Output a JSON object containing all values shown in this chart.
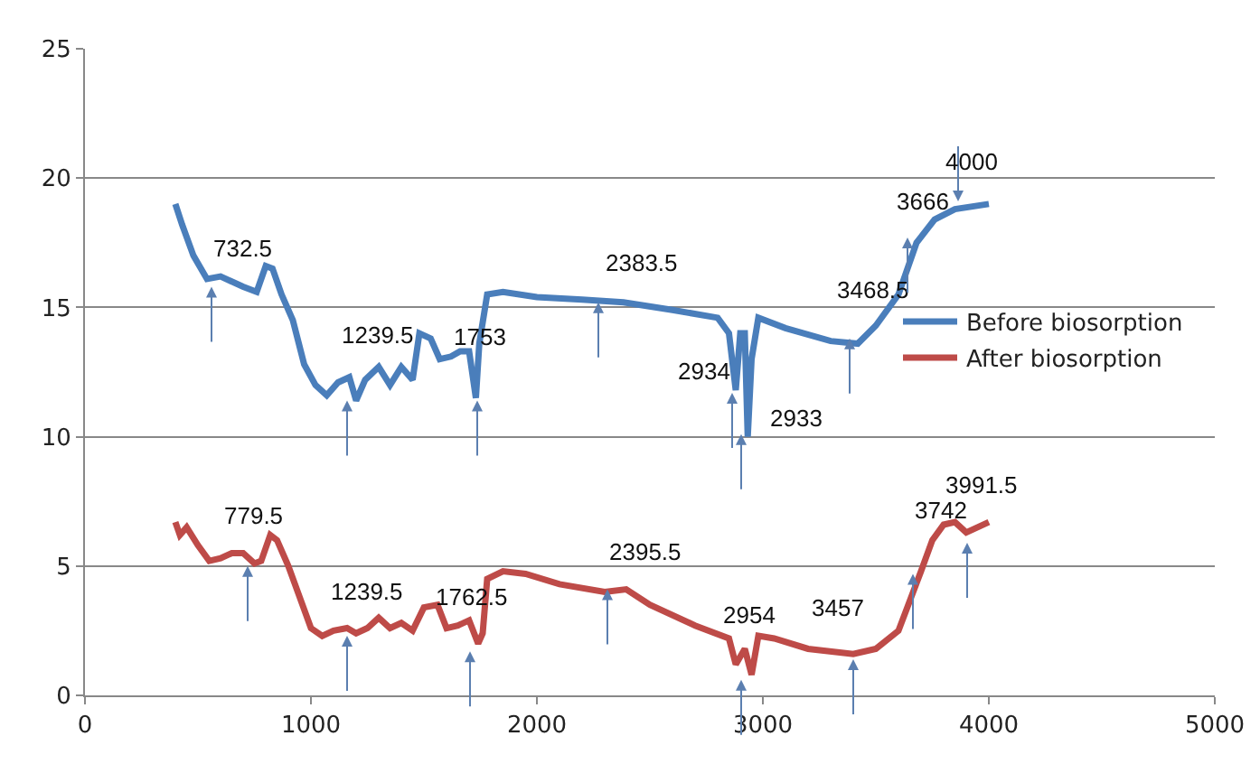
{
  "chart_data": {
    "type": "line",
    "xlim": [
      0,
      5000
    ],
    "xticks": [
      0,
      1000,
      2000,
      3000,
      4000,
      5000
    ],
    "ylim": [
      0,
      25
    ],
    "yticks": [
      0,
      5,
      10,
      15,
      20,
      25
    ],
    "grid": "y",
    "legend": "right",
    "marker": "none",
    "line_style": "solid",
    "series": [
      {
        "name": "Before biosorption",
        "color": "#4a7ebb",
        "x": [
          400,
          430,
          480,
          540,
          600,
          700,
          760,
          800,
          830,
          870,
          920,
          970,
          1020,
          1070,
          1120,
          1170,
          1200,
          1240,
          1300,
          1350,
          1400,
          1450,
          1480,
          1530,
          1570,
          1620,
          1660,
          1700,
          1730,
          1745,
          1780,
          1850,
          2000,
          2200,
          2383,
          2600,
          2800,
          2850,
          2880,
          2900,
          2920,
          2933,
          2950,
          2980,
          3100,
          3300,
          3420,
          3500,
          3600,
          3680,
          3760,
          3850,
          4000
        ],
        "values": [
          19.0,
          18.2,
          17.0,
          16.1,
          16.2,
          15.8,
          15.6,
          16.6,
          16.5,
          15.5,
          14.5,
          12.8,
          12.0,
          11.6,
          12.1,
          12.3,
          11.4,
          12.2,
          12.7,
          12.0,
          12.7,
          12.2,
          14.0,
          13.8,
          13.0,
          13.1,
          13.3,
          13.3,
          11.5,
          13.6,
          15.5,
          15.6,
          15.4,
          15.3,
          15.2,
          14.9,
          14.6,
          14.0,
          11.8,
          14.0,
          14.0,
          10.0,
          13.0,
          14.6,
          14.2,
          13.7,
          13.6,
          14.3,
          15.5,
          17.5,
          18.4,
          18.8,
          19.0
        ]
      },
      {
        "name": "After biosorption",
        "color": "#be4b48",
        "x": [
          400,
          420,
          450,
          500,
          550,
          600,
          650,
          700,
          750,
          780,
          820,
          850,
          900,
          950,
          1000,
          1050,
          1100,
          1160,
          1200,
          1250,
          1300,
          1350,
          1400,
          1450,
          1500,
          1560,
          1600,
          1650,
          1700,
          1740,
          1760,
          1780,
          1850,
          1950,
          2100,
          2300,
          2395,
          2500,
          2700,
          2850,
          2880,
          2920,
          2950,
          2980,
          3050,
          3200,
          3400,
          3500,
          3600,
          3700,
          3750,
          3800,
          3850,
          3900,
          4000
        ],
        "values": [
          6.7,
          6.2,
          6.5,
          5.8,
          5.2,
          5.3,
          5.5,
          5.5,
          5.1,
          5.2,
          6.2,
          6.0,
          5.0,
          3.8,
          2.6,
          2.3,
          2.5,
          2.6,
          2.4,
          2.6,
          3.0,
          2.6,
          2.8,
          2.5,
          3.4,
          3.5,
          2.6,
          2.7,
          2.9,
          2.0,
          2.4,
          4.5,
          4.8,
          4.7,
          4.3,
          4.0,
          4.1,
          3.5,
          2.7,
          2.2,
          1.2,
          1.8,
          0.8,
          2.3,
          2.2,
          1.8,
          1.6,
          1.8,
          2.5,
          4.8,
          6.0,
          6.6,
          6.7,
          6.3,
          6.7
        ]
      }
    ],
    "annotations": [
      {
        "text": "732.5",
        "x": 560,
        "y": 15.8
      },
      {
        "text": "1239.5",
        "x": 1160,
        "y": 11.4
      },
      {
        "text": "1753",
        "x": 1736,
        "y": 11.4
      },
      {
        "text": "2383.5",
        "x": 2272,
        "y": 15.2
      },
      {
        "text": "2934",
        "x": 2864,
        "y": 11.7
      },
      {
        "text": "2933",
        "x": 2904,
        "y": 10.1
      },
      {
        "text": "3468.5",
        "x": 3384,
        "y": 13.8
      },
      {
        "text": "3666",
        "x": 3640,
        "y": 17.7
      },
      {
        "text": "4000",
        "x": 3864,
        "y": 19.1
      },
      {
        "text": "779.5",
        "x": 720,
        "y": 5.0
      },
      {
        "text": "1239.5",
        "x": 1160,
        "y": 2.3
      },
      {
        "text": "1762.5",
        "x": 1704,
        "y": 1.7
      },
      {
        "text": "2395.5",
        "x": 2312,
        "y": 4.1
      },
      {
        "text": "2954",
        "x": 2904,
        "y": 0.6
      },
      {
        "text": "3457",
        "x": 3400,
        "y": 1.4
      },
      {
        "text": "3742",
        "x": 3664,
        "y": 4.7
      },
      {
        "text": "3991.5",
        "x": 3904,
        "y": 5.9
      }
    ]
  }
}
